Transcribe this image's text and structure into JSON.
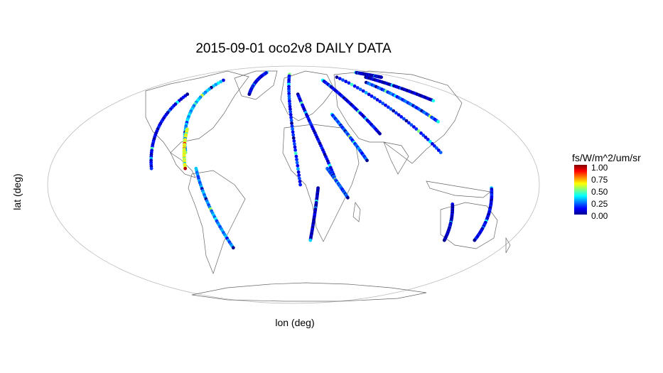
{
  "title": "2015-09-01 oco2v8 DAILY DATA",
  "xlabel": "lon (deg)",
  "ylabel": "lat (deg)",
  "legend": {
    "title": "fs/W/m^2/um/sr",
    "ticks": [
      "1.00",
      "0.75",
      "0.50",
      "0.25",
      "0.00"
    ],
    "colors": [
      "#00008f",
      "#0000ff",
      "#0080ff",
      "#00ffff",
      "#80ff80",
      "#ffff00",
      "#ff8000",
      "#ff0000",
      "#800000"
    ]
  },
  "chart_data": {
    "type": "scatter",
    "projection": "mollweide",
    "value_range": [
      0,
      1
    ],
    "tracks": [
      {
        "lon": [
          -120,
          -105
        ],
        "lat": [
          60,
          10
        ],
        "v": 0.1
      },
      {
        "lon": [
          -108,
          -82
        ],
        "lat": [
          72,
          20
        ],
        "v": 0.3
      },
      {
        "lon": [
          -88,
          -80
        ],
        "lat": [
          35,
          10
        ],
        "v": 0.6
      },
      {
        "lon": [
          -72,
          -52
        ],
        "lat": [
          10,
          -40
        ],
        "v": 0.25
      },
      {
        "lon": [
          -60,
          -50
        ],
        "lat": [
          80,
          60
        ],
        "v": 0.1
      },
      {
        "lon": [
          -8,
          5
        ],
        "lat": [
          78,
          0
        ],
        "v": 0.15
      },
      {
        "lon": [
          5,
          30
        ],
        "lat": [
          60,
          5
        ],
        "v": 0.1
      },
      {
        "lon": [
          18,
          14
        ],
        "lat": [
          -2,
          -35
        ],
        "v": 0.05
      },
      {
        "lon": [
          25,
          40
        ],
        "lat": [
          10,
          -8
        ],
        "v": 0.2
      },
      {
        "lon": [
          35,
          55
        ],
        "lat": [
          45,
          15
        ],
        "v": 0.2
      },
      {
        "lon": [
          45,
          70
        ],
        "lat": [
          72,
          32
        ],
        "v": 0.1
      },
      {
        "lon": [
          75,
          112
        ],
        "lat": [
          75,
          20
        ],
        "v": 0.15
      },
      {
        "lon": [
          105,
          125
        ],
        "lat": [
          70,
          40
        ],
        "v": 0.2
      },
      {
        "lon": [
          125,
          145
        ],
        "lat": [
          75,
          55
        ],
        "v": 0.05
      },
      {
        "lon": [
          118,
          125
        ],
        "lat": [
          -12,
          -35
        ],
        "v": 0.05
      },
      {
        "lon": [
          145,
          150
        ],
        "lat": [
          -2,
          -35
        ],
        "v": 0.1
      },
      {
        "lon": [
          140,
          152
        ],
        "lat": [
          80,
          75
        ],
        "v": 0.05
      }
    ]
  }
}
